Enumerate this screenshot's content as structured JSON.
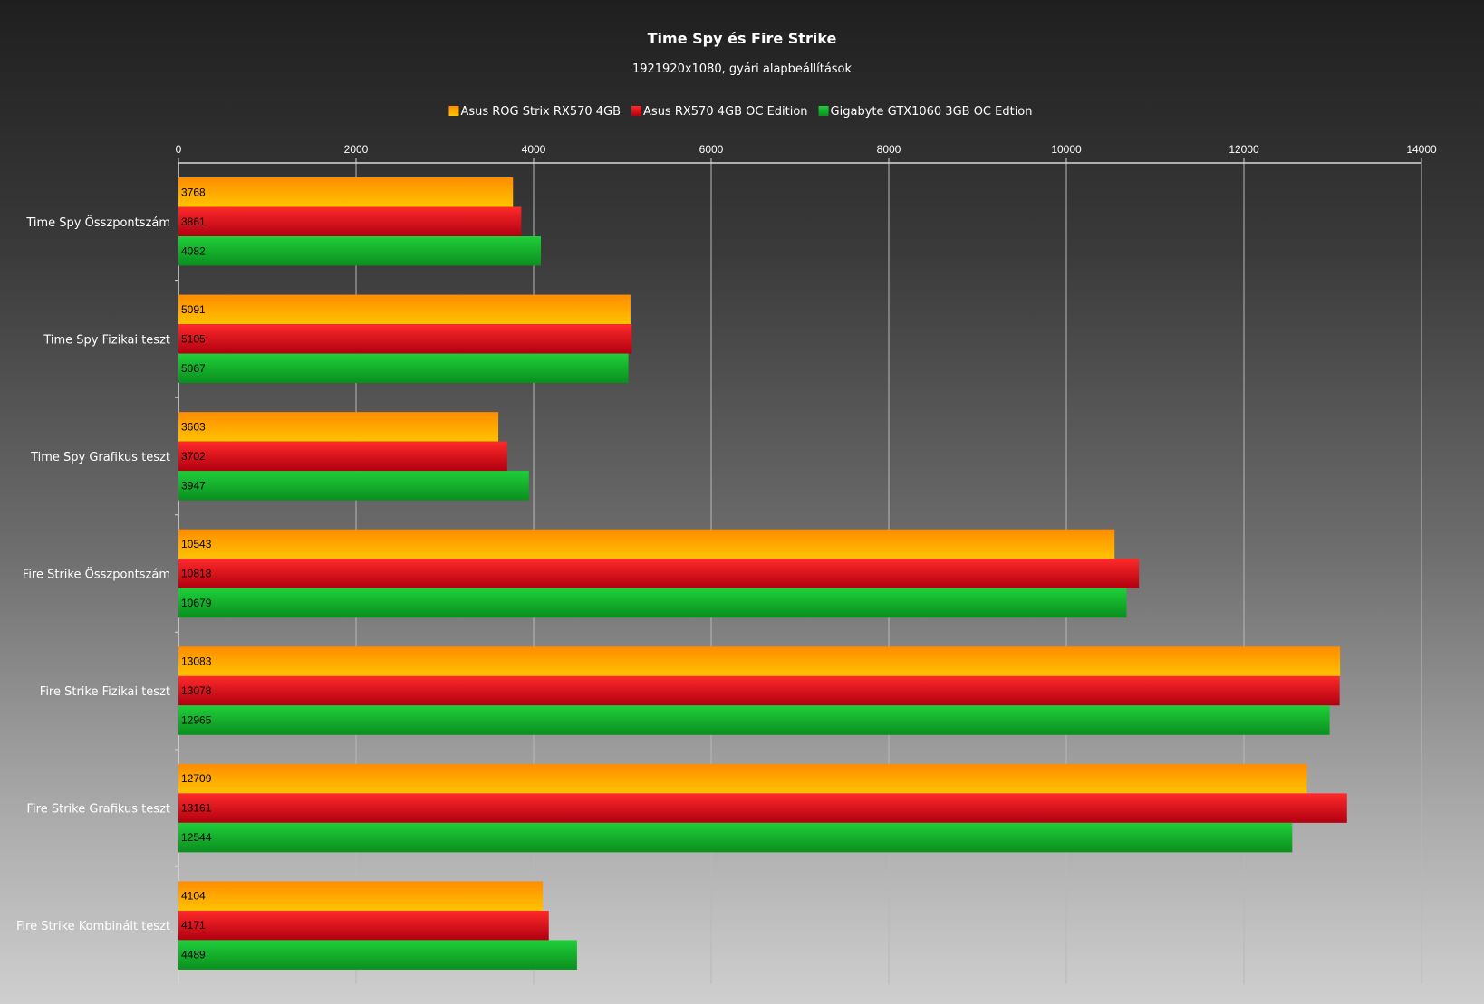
{
  "chart_data": {
    "type": "bar",
    "orientation": "horizontal",
    "title": "Time Spy és Fire Strike",
    "subtitle": "1921920x1080, gyári alapbeállítások",
    "categories": [
      "Time Spy Összpontszám",
      "Time Spy Fizikai teszt",
      "Time Spy Grafikus teszt",
      "Fire Strike Összpontszám",
      "Fire Strike Fizikai teszt",
      "Fire Strike Grafikus teszt",
      "Fire Strike Kombinált teszt"
    ],
    "series": [
      {
        "name": "Asus ROG Strix RX570 4GB",
        "color": "#ff8c00",
        "color_light": "#ffc300",
        "values": [
          3768,
          5091,
          3603,
          10543,
          13083,
          12709,
          4104
        ]
      },
      {
        "name": "Asus RX570 4GB OC Edition",
        "color": "#b00010",
        "color_light": "#ff2a2a",
        "values": [
          3861,
          5105,
          3702,
          10818,
          13078,
          13161,
          4171
        ]
      },
      {
        "name": "Gigabyte GTX1060 3GB OC Edtion",
        "color": "#0a8f1e",
        "color_light": "#1fcf3a",
        "values": [
          4082,
          5067,
          3947,
          10679,
          12965,
          12544,
          4489
        ]
      }
    ],
    "xlim": [
      0,
      14000
    ],
    "xticks": [
      0,
      2000,
      4000,
      6000,
      8000,
      10000,
      12000,
      14000
    ],
    "grid": true,
    "legend_position": "top",
    "axis_position": "top"
  }
}
